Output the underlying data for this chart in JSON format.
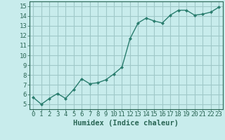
{
  "x": [
    0,
    1,
    2,
    3,
    4,
    5,
    6,
    7,
    8,
    9,
    10,
    11,
    12,
    13,
    14,
    15,
    16,
    17,
    18,
    19,
    20,
    21,
    22,
    23
  ],
  "y": [
    5.7,
    5.0,
    5.6,
    6.1,
    5.6,
    6.5,
    7.6,
    7.1,
    7.2,
    7.5,
    8.1,
    8.8,
    11.7,
    13.3,
    13.8,
    13.5,
    13.3,
    14.1,
    14.6,
    14.6,
    14.1,
    14.2,
    14.4,
    14.9
  ],
  "line_color": "#2a7d6e",
  "marker": "D",
  "marker_size": 2,
  "bg_color": "#c8ecec",
  "grid_color": "#a0c8c8",
  "xlabel": "Humidex (Indice chaleur)",
  "xlim": [
    -0.5,
    23.5
  ],
  "ylim": [
    4.5,
    15.5
  ],
  "yticks": [
    5,
    6,
    7,
    8,
    9,
    10,
    11,
    12,
    13,
    14,
    15
  ],
  "xticks": [
    0,
    1,
    2,
    3,
    4,
    5,
    6,
    7,
    8,
    9,
    10,
    11,
    12,
    13,
    14,
    15,
    16,
    17,
    18,
    19,
    20,
    21,
    22,
    23
  ],
  "xlabel_fontsize": 7.5,
  "tick_fontsize": 6.5,
  "axis_color": "#2a6655",
  "linewidth": 1.0,
  "spine_color": "#2a6655"
}
